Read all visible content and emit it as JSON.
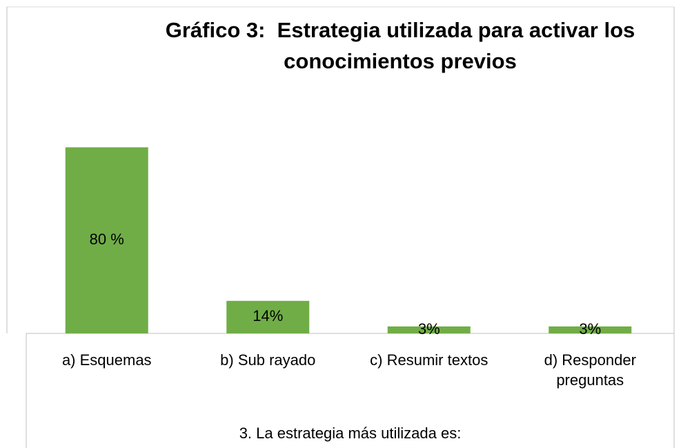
{
  "chart_data": {
    "type": "bar",
    "title": "Gráfico 3:  Estrategia utilizada para activar los conocimientos previos",
    "x_label": "3. La estrategia más utilizada es:",
    "categories": [
      "a) Esquemas",
      "b) Sub rayado",
      "c) Resumir textos",
      "d) Responder preguntas"
    ],
    "values": [
      80,
      14,
      3,
      3
    ],
    "value_labels": [
      "80 %",
      "14%",
      "3%",
      "3%"
    ],
    "color": "#70ad47",
    "ylim": [
      0,
      100
    ]
  }
}
